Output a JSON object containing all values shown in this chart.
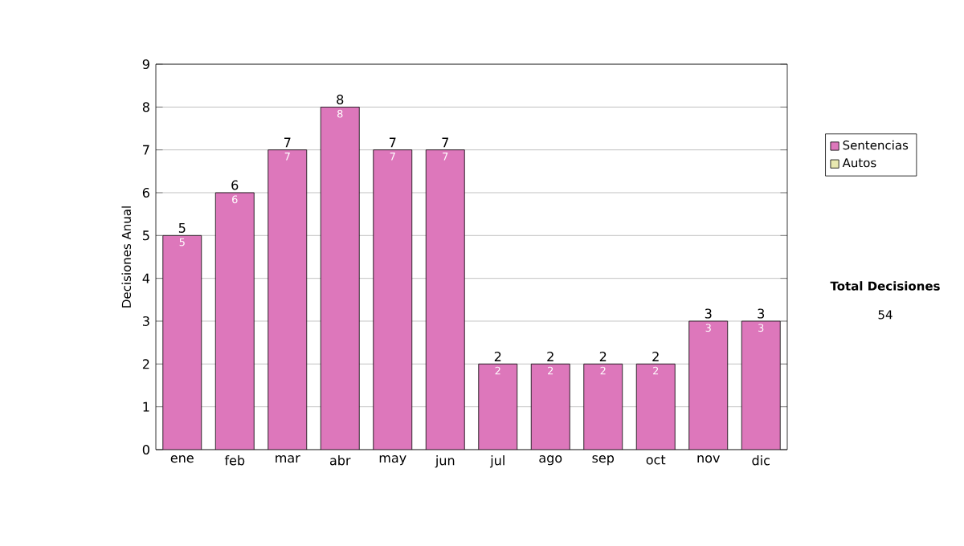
{
  "chart_data": {
    "type": "bar",
    "ylabel": "Decisiones Anual",
    "categories": [
      "ene",
      "feb",
      "mar",
      "abr",
      "may",
      "jun",
      "jul",
      "ago",
      "sep",
      "oct",
      "nov",
      "dic"
    ],
    "series": [
      {
        "name": "Sentencias",
        "color": "#dd77bb",
        "values": [
          5,
          6,
          7,
          8,
          7,
          7,
          2,
          2,
          2,
          2,
          3,
          3
        ],
        "value_labels": [
          "5",
          "6",
          "7",
          "8",
          "7",
          "7",
          "2",
          "2",
          "2",
          "2",
          "3",
          "3"
        ]
      },
      {
        "name": "Autos",
        "color": "#e8e8b0",
        "values": [
          0,
          0,
          0,
          0,
          0,
          0,
          0,
          0,
          0,
          0,
          0,
          0
        ]
      }
    ],
    "stacked": true,
    "totals": [
      "5",
      "6",
      "7",
      "8",
      "7",
      "7",
      "2",
      "2",
      "2",
      "2",
      "3",
      "3"
    ],
    "ylim": [
      0,
      9
    ],
    "yticks": [
      0,
      1,
      2,
      3,
      4,
      5,
      6,
      7,
      8,
      9
    ],
    "grid": "y",
    "legend": "right",
    "annotations": [
      "Total Decisiones",
      "54"
    ]
  }
}
